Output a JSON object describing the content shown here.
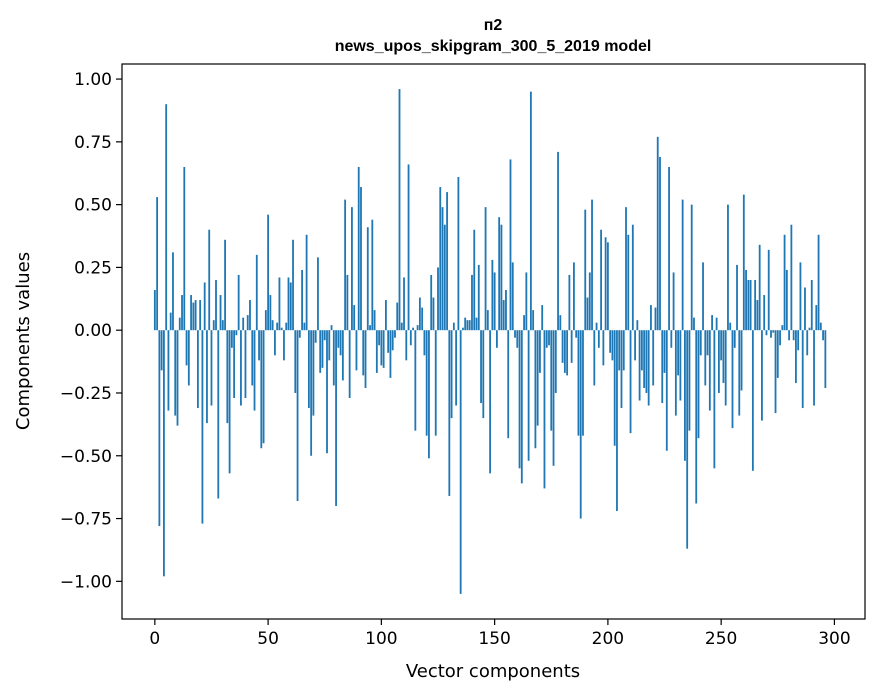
{
  "chart_data": {
    "type": "bar",
    "title": "п2",
    "subtitle": "news_upos_skipgram_300_5_2019 model",
    "xlabel": "Vector components",
    "ylabel": "Components values",
    "xlim": [
      -14.5,
      313.5
    ],
    "ylim": [
      -1.15,
      1.06
    ],
    "xticks": [
      0,
      50,
      100,
      150,
      200,
      250,
      300
    ],
    "yticks": [
      -1.0,
      -0.75,
      -0.5,
      -0.25,
      0.0,
      0.25,
      0.5,
      0.75,
      1.0
    ],
    "ytick_labels": [
      "−1.00",
      "−0.75",
      "−0.50",
      "−0.25",
      "0.00",
      "0.25",
      "0.50",
      "0.75",
      "1.00"
    ],
    "bar_color": "#1f77b4",
    "values": [
      0.16,
      0.53,
      -0.78,
      -0.16,
      -0.98,
      0.9,
      -0.32,
      0.07,
      0.31,
      -0.34,
      -0.38,
      0.05,
      0.14,
      0.65,
      -0.14,
      -0.22,
      0.14,
      0.11,
      0.12,
      -0.31,
      0.12,
      -0.77,
      0.19,
      -0.37,
      0.4,
      -0.3,
      0.04,
      0.2,
      -0.67,
      0.14,
      0.04,
      0.36,
      -0.37,
      -0.57,
      -0.07,
      -0.27,
      -0.02,
      0.22,
      -0.3,
      0.05,
      -0.27,
      0.06,
      0.12,
      -0.22,
      -0.32,
      0.3,
      -0.12,
      -0.47,
      -0.45,
      0.08,
      0.46,
      0.14,
      0.04,
      -0.1,
      0.03,
      0.21,
      0.01,
      -0.12,
      0.03,
      0.21,
      0.19,
      0.36,
      -0.25,
      -0.68,
      -0.03,
      0.24,
      0.03,
      0.38,
      -0.31,
      -0.5,
      -0.34,
      -0.05,
      0.29,
      -0.17,
      -0.15,
      -0.04,
      -0.49,
      -0.12,
      0.02,
      -0.22,
      -0.7,
      -0.07,
      -0.1,
      -0.2,
      0.52,
      0.22,
      -0.27,
      0.49,
      0.1,
      -0.16,
      0.65,
      0.57,
      -0.18,
      -0.23,
      0.41,
      0.02,
      0.44,
      0.08,
      -0.17,
      -0.06,
      -0.14,
      -0.15,
      0.12,
      -0.09,
      -0.19,
      -0.08,
      -0.03,
      0.11,
      0.96,
      0.03,
      0.21,
      -0.12,
      0.66,
      -0.06,
      0.01,
      -0.4,
      0.02,
      0.13,
      0.09,
      -0.1,
      -0.42,
      -0.51,
      0.22,
      0.13,
      -0.42,
      0.25,
      0.57,
      0.49,
      0.42,
      0.55,
      -0.66,
      -0.35,
      0.03,
      -0.3,
      0.61,
      -1.05,
      0.01,
      0.05,
      0.04,
      0.04,
      0.22,
      0.4,
      0.05,
      0.26,
      -0.29,
      -0.35,
      0.49,
      0.08,
      -0.57,
      0.28,
      0.23,
      -0.07,
      0.45,
      0.42,
      0.12,
      0.16,
      -0.43,
      0.68,
      0.27,
      -0.03,
      -0.07,
      -0.55,
      -0.61,
      0.06,
      0.23,
      -0.52,
      0.95,
      0.08,
      -0.47,
      -0.38,
      -0.17,
      0.1,
      -0.63,
      -0.07,
      -0.06,
      -0.4,
      -0.54,
      -0.25,
      0.71,
      0.06,
      -0.13,
      -0.17,
      -0.18,
      0.22,
      -0.13,
      0.27,
      -0.03,
      -0.42,
      -0.75,
      -0.42,
      0.48,
      0.13,
      0.23,
      0.52,
      -0.22,
      0.03,
      -0.07,
      0.4,
      -0.14,
      0.37,
      0.35,
      -0.09,
      -0.12,
      -0.46,
      -0.72,
      -0.16,
      -0.31,
      -0.16,
      0.49,
      0.38,
      -0.41,
      0.42,
      -0.12,
      0.04,
      -0.28,
      -0.16,
      -0.23,
      -0.25,
      -0.3,
      0.1,
      -0.22,
      0.09,
      0.77,
      0.69,
      -0.29,
      -0.17,
      -0.48,
      0.65,
      -0.07,
      0.23,
      -0.34,
      -0.18,
      -0.28,
      0.52,
      -0.52,
      -0.87,
      -0.4,
      0.5,
      0.05,
      -0.69,
      -0.43,
      -0.1,
      0.27,
      -0.22,
      -0.1,
      -0.32,
      0.06,
      -0.55,
      0.05,
      -0.25,
      -0.12,
      -0.21,
      -0.3,
      0.5,
      0.03,
      -0.39,
      -0.07,
      0.26,
      -0.34,
      -0.24,
      0.54,
      0.24,
      0.2,
      0.2,
      -0.56,
      0.2,
      0.12,
      0.34,
      -0.36,
      0.14,
      -0.02,
      0.32,
      -0.03,
      -0.01,
      -0.33,
      -0.19,
      -0.06,
      0.02,
      0.38,
      0.24,
      -0.04,
      0.42,
      -0.04,
      -0.21,
      -0.08,
      0.27,
      -0.31,
      0.17,
      -0.1,
      0.01,
      0.2,
      -0.3,
      0.1,
      0.38,
      0.03,
      -0.04,
      -0.23
    ]
  }
}
